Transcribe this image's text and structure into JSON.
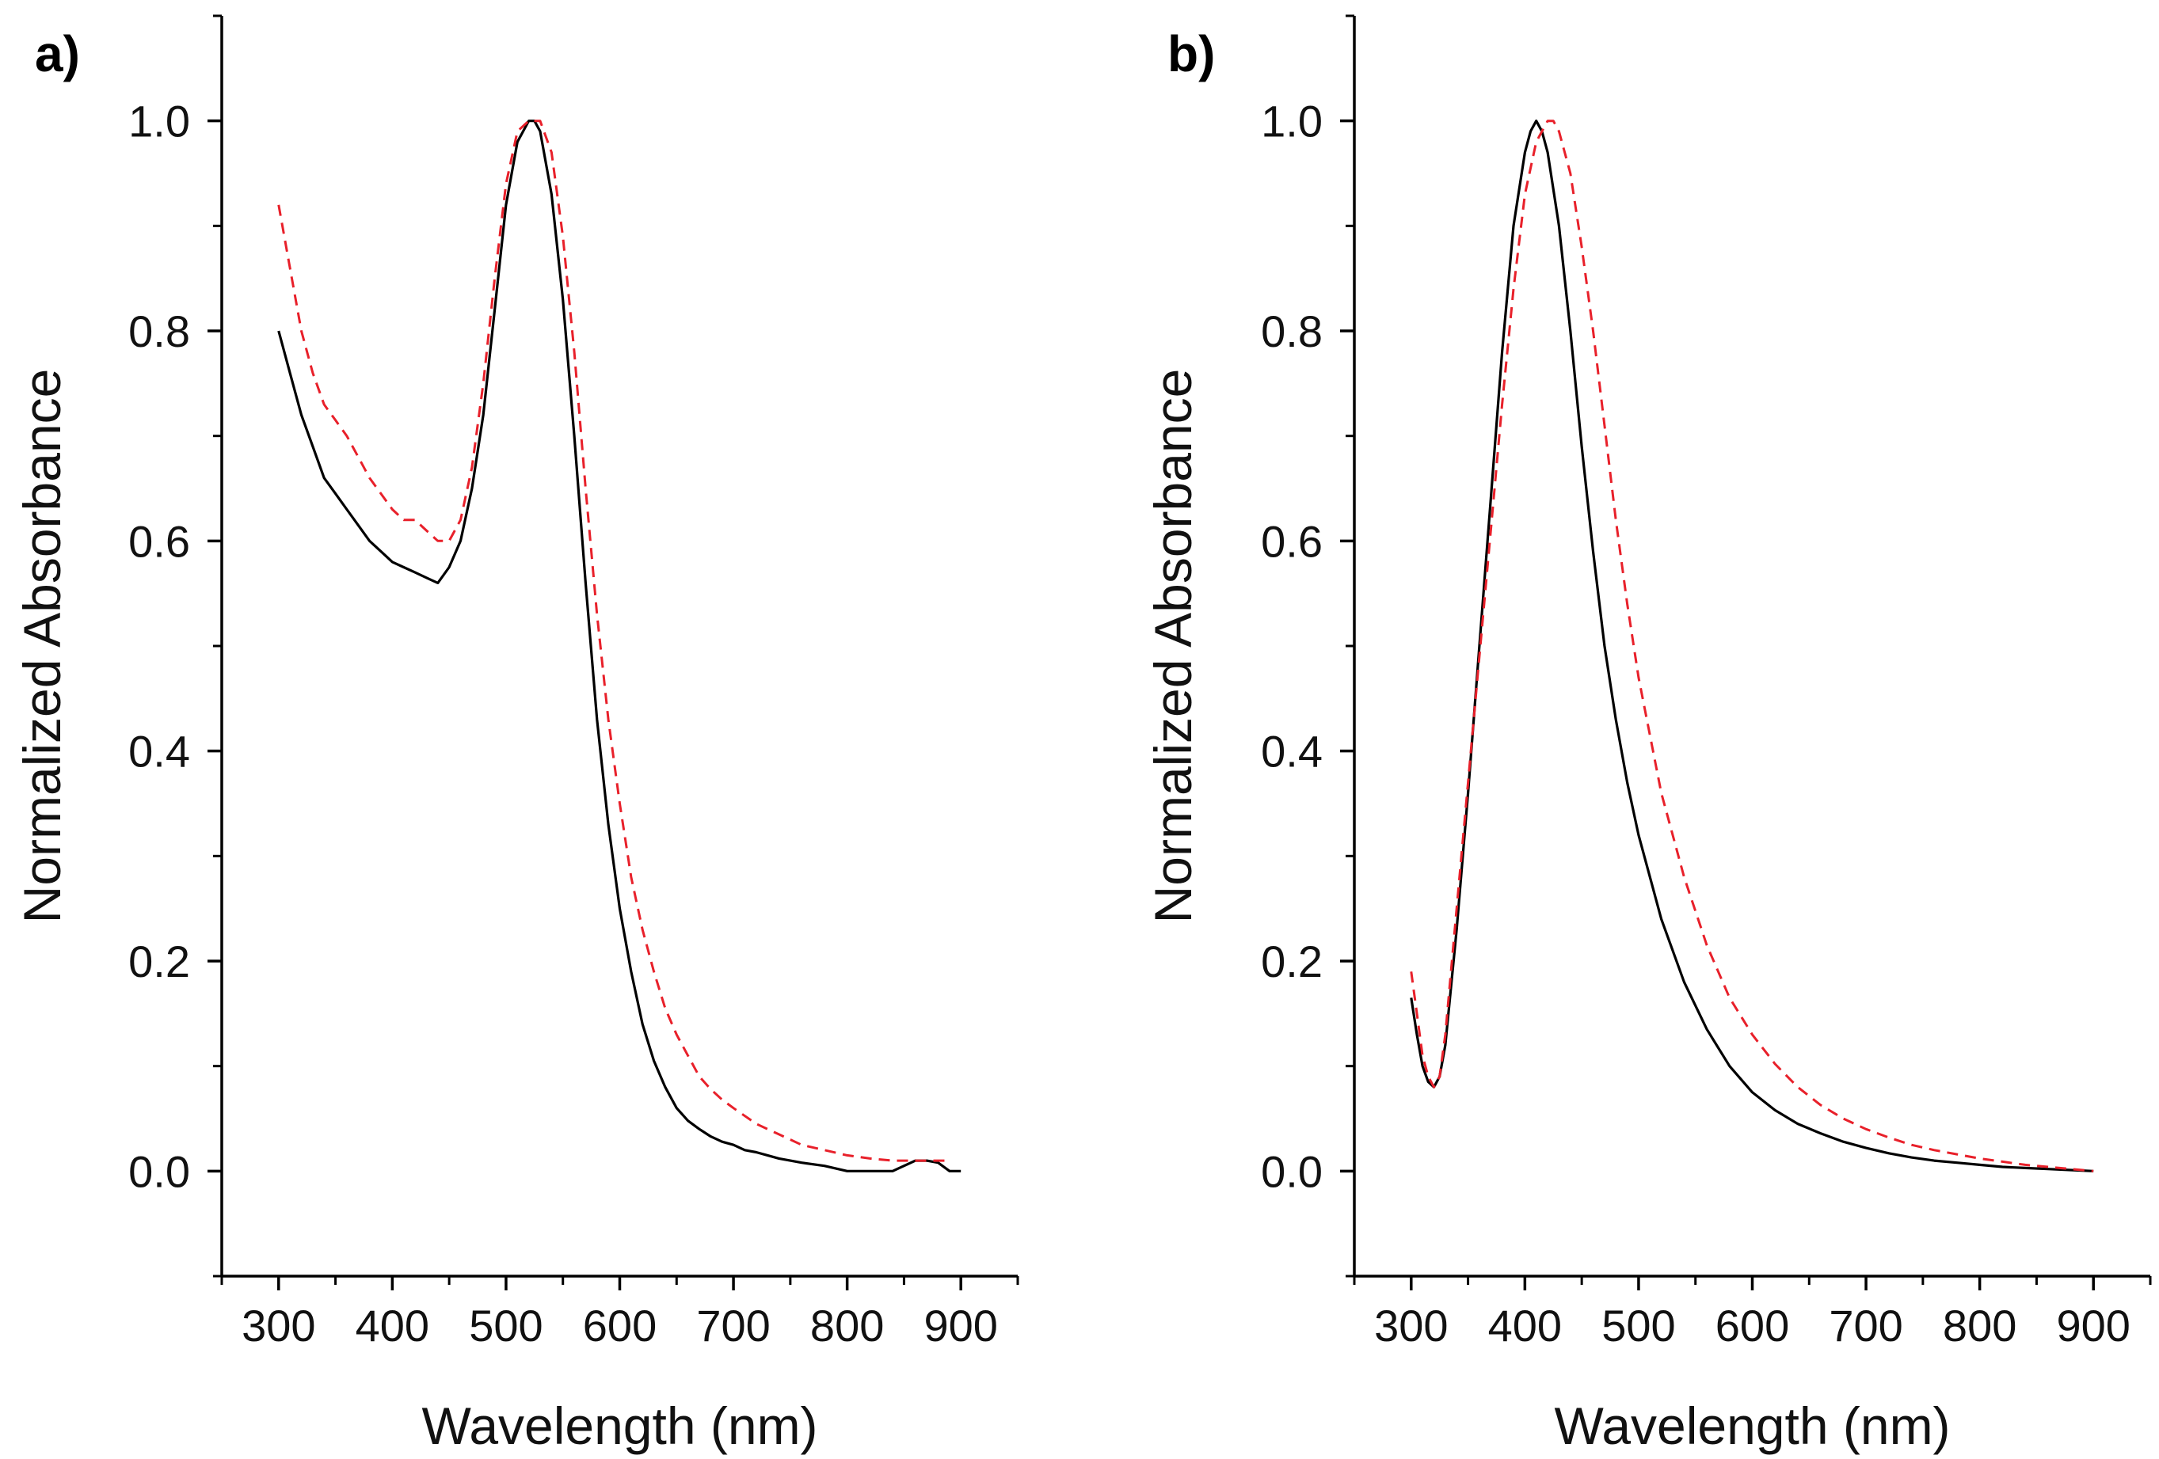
{
  "chart_data": [
    {
      "type": "line",
      "panel_label": "a)",
      "xlabel": "Wavelength (nm)",
      "ylabel": "Normalized Absorbance",
      "xlim": [
        250,
        950
      ],
      "ylim": [
        -0.1,
        1.1
      ],
      "xticks": [
        300,
        400,
        500,
        600,
        700,
        800,
        900
      ],
      "xtick_labels": [
        "300",
        "400",
        "500",
        "600",
        "700",
        "800",
        "900"
      ],
      "yticks": [
        0.0,
        0.2,
        0.4,
        0.6,
        0.8,
        1.0
      ],
      "ytick_labels": [
        "0.0",
        "0.2",
        "0.4",
        "0.6",
        "0.8",
        "1.0"
      ],
      "grid": false,
      "legend": "none",
      "series": [
        {
          "name": "solid black",
          "color": "#000000",
          "dash": "solid",
          "x": [
            300,
            310,
            320,
            330,
            340,
            350,
            360,
            370,
            380,
            390,
            400,
            410,
            420,
            430,
            440,
            450,
            460,
            470,
            480,
            490,
            500,
            510,
            520,
            525,
            530,
            540,
            550,
            560,
            570,
            580,
            590,
            600,
            610,
            620,
            630,
            640,
            650,
            660,
            670,
            680,
            690,
            700,
            710,
            720,
            730,
            740,
            750,
            760,
            780,
            800,
            820,
            840,
            850,
            860,
            870,
            880,
            890,
            900
          ],
          "y": [
            0.8,
            0.76,
            0.72,
            0.69,
            0.66,
            0.645,
            0.63,
            0.615,
            0.6,
            0.59,
            0.58,
            0.575,
            0.57,
            0.565,
            0.56,
            0.575,
            0.6,
            0.65,
            0.72,
            0.82,
            0.92,
            0.98,
            1.0,
            1.0,
            0.99,
            0.93,
            0.83,
            0.7,
            0.56,
            0.43,
            0.33,
            0.25,
            0.19,
            0.14,
            0.105,
            0.08,
            0.06,
            0.048,
            0.04,
            0.033,
            0.028,
            0.025,
            0.02,
            0.018,
            0.015,
            0.012,
            0.01,
            0.008,
            0.005,
            0.0,
            0.0,
            0.0,
            0.005,
            0.01,
            0.01,
            0.008,
            0.0,
            0.0
          ]
        },
        {
          "name": "dashed red",
          "color": "#e8202a",
          "dash": "dashed",
          "x": [
            300,
            310,
            320,
            330,
            340,
            350,
            360,
            370,
            380,
            390,
            400,
            410,
            420,
            430,
            440,
            450,
            460,
            470,
            480,
            490,
            500,
            510,
            520,
            530,
            540,
            550,
            560,
            570,
            580,
            590,
            600,
            610,
            620,
            630,
            640,
            650,
            660,
            670,
            680,
            690,
            700,
            720,
            740,
            760,
            780,
            800,
            820,
            840,
            860,
            880,
            890
          ],
          "y": [
            0.92,
            0.86,
            0.8,
            0.76,
            0.73,
            0.715,
            0.7,
            0.68,
            0.66,
            0.645,
            0.63,
            0.62,
            0.62,
            0.61,
            0.6,
            0.6,
            0.62,
            0.67,
            0.75,
            0.85,
            0.94,
            0.99,
            1.0,
            1.0,
            0.97,
            0.89,
            0.78,
            0.65,
            0.53,
            0.43,
            0.35,
            0.28,
            0.23,
            0.19,
            0.155,
            0.13,
            0.11,
            0.09,
            0.078,
            0.068,
            0.06,
            0.045,
            0.035,
            0.025,
            0.02,
            0.015,
            0.012,
            0.01,
            0.01,
            0.01,
            0.01
          ]
        }
      ]
    },
    {
      "type": "line",
      "panel_label": "b)",
      "xlabel": "Wavelength (nm)",
      "ylabel": "Normalized Absorbance",
      "xlim": [
        250,
        950
      ],
      "ylim": [
        -0.1,
        1.1
      ],
      "xticks": [
        300,
        400,
        500,
        600,
        700,
        800,
        900
      ],
      "xtick_labels": [
        "300",
        "400",
        "500",
        "600",
        "700",
        "800",
        "900"
      ],
      "yticks": [
        0.0,
        0.2,
        0.4,
        0.6,
        0.8,
        1.0
      ],
      "ytick_labels": [
        "0.0",
        "0.2",
        "0.4",
        "0.6",
        "0.8",
        "1.0"
      ],
      "grid": false,
      "legend": "none",
      "series": [
        {
          "name": "solid black",
          "color": "#000000",
          "dash": "solid",
          "x": [
            300,
            305,
            310,
            315,
            320,
            325,
            330,
            340,
            350,
            360,
            370,
            380,
            390,
            400,
            405,
            410,
            415,
            420,
            430,
            440,
            450,
            460,
            470,
            480,
            490,
            500,
            520,
            540,
            560,
            580,
            600,
            620,
            640,
            660,
            680,
            700,
            720,
            740,
            760,
            780,
            800,
            820,
            840,
            860,
            880,
            900
          ],
          "y": [
            0.165,
            0.13,
            0.1,
            0.085,
            0.08,
            0.09,
            0.12,
            0.23,
            0.36,
            0.5,
            0.64,
            0.78,
            0.9,
            0.97,
            0.99,
            1.0,
            0.99,
            0.97,
            0.9,
            0.8,
            0.69,
            0.59,
            0.5,
            0.43,
            0.37,
            0.32,
            0.24,
            0.18,
            0.135,
            0.1,
            0.075,
            0.058,
            0.045,
            0.036,
            0.028,
            0.022,
            0.017,
            0.013,
            0.01,
            0.008,
            0.006,
            0.004,
            0.003,
            0.002,
            0.001,
            0.0
          ]
        },
        {
          "name": "dashed red",
          "color": "#e8202a",
          "dash": "dashed",
          "x": [
            300,
            305,
            310,
            315,
            320,
            325,
            330,
            340,
            350,
            360,
            370,
            380,
            390,
            400,
            410,
            420,
            425,
            430,
            440,
            450,
            460,
            470,
            480,
            490,
            500,
            520,
            540,
            560,
            580,
            600,
            620,
            640,
            660,
            680,
            700,
            720,
            740,
            760,
            780,
            800,
            820,
            840,
            860,
            880,
            900
          ],
          "y": [
            0.19,
            0.15,
            0.11,
            0.09,
            0.08,
            0.09,
            0.13,
            0.25,
            0.37,
            0.49,
            0.61,
            0.73,
            0.84,
            0.93,
            0.98,
            1.0,
            1.0,
            0.99,
            0.95,
            0.88,
            0.8,
            0.71,
            0.62,
            0.54,
            0.47,
            0.36,
            0.28,
            0.215,
            0.165,
            0.13,
            0.102,
            0.08,
            0.063,
            0.05,
            0.04,
            0.032,
            0.025,
            0.02,
            0.016,
            0.012,
            0.009,
            0.006,
            0.004,
            0.002,
            0.0
          ]
        }
      ]
    }
  ]
}
